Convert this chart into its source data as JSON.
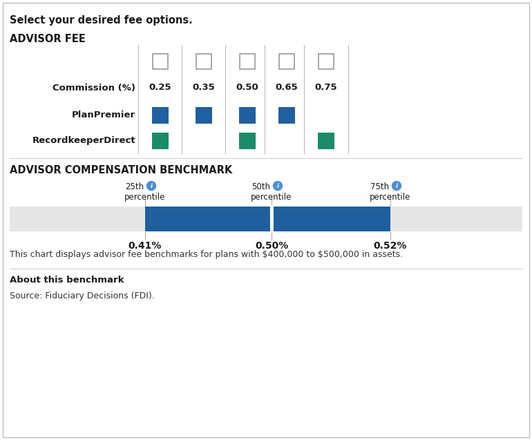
{
  "title_top": "Select your desired fee options.",
  "section1_title": "ADVISOR FEE",
  "commission_label": "Commission (%)",
  "fee_options": [
    "0.25",
    "0.35",
    "0.50",
    "0.65",
    "0.75"
  ],
  "planpremier_label": "PlanPremier",
  "planpremier_fees": [
    true,
    true,
    true,
    true,
    false
  ],
  "recordkeeper_label": "RecordkeeperDirect",
  "recordkeeper_fees": [
    true,
    false,
    true,
    false,
    true
  ],
  "planpremier_color": "#2060A0",
  "recordkeeper_color": "#1A8C6A",
  "section2_title": "ADVISOR COMPENSATION BENCHMARK",
  "percentiles": [
    "25th",
    "50th",
    "75th"
  ],
  "percentile_label": "percentile",
  "percentile_display": [
    "0.41%",
    "0.50%",
    "0.52%"
  ],
  "bar_color": "#1F5F9F",
  "bar_bg_color": "#E6E6E6",
  "info_note": "This chart displays advisor fee benchmarks for plans with $400,000 to $500,000 in assets.",
  "about_title": "About this benchmark",
  "source_text": "Source: Fiduciary Decisions (FDI).",
  "bg_color": "#FFFFFF",
  "border_color": "#BBBBBB",
  "checkbox_color": "#999999",
  "text_dark": "#1A1A1A",
  "text_medium": "#333333",
  "grid_line_color": "#BBBBBB",
  "info_circle_color": "#4A90D9",
  "divider_color": "#CCCCCC"
}
